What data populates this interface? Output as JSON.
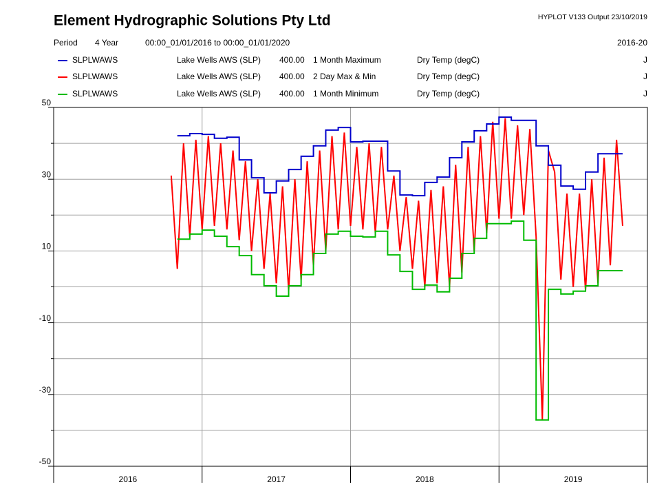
{
  "header": {
    "title": "Element Hydrographic Solutions Pty Ltd",
    "program": "HYPLOT V133  Output 23/10/2019",
    "period_label": "Period",
    "period": "4 Year",
    "range": "00:00_01/01/2016 to 00:00_01/01/2020",
    "years": "2016-20"
  },
  "chart_data": {
    "type": "line",
    "categories": [
      "2016",
      "2017",
      "2018",
      "2019"
    ],
    "xlim": [
      2016,
      2020
    ],
    "xticks": [
      2016,
      2017,
      2018,
      2019,
      2020
    ],
    "ylim": [
      -50,
      50
    ],
    "yticks": [
      -50,
      -30,
      -10,
      10,
      30,
      50
    ],
    "minor_yticks": [
      -40,
      -20,
      0,
      20,
      40
    ],
    "grid": true,
    "series": [
      {
        "name": "SLPLWAWS",
        "site": "Lake Wells AWS (SLP)",
        "code": "400.00",
        "description": "1 Month Maximum",
        "variable": "Dry Temp (degC)",
        "quality": "J",
        "color": "#0000cc",
        "step": true,
        "x": [
          2016.833,
          2016.917,
          2017.0,
          2017.083,
          2017.167,
          2017.25,
          2017.333,
          2017.417,
          2017.5,
          2017.583,
          2017.667,
          2017.75,
          2017.833,
          2017.917,
          2018.0,
          2018.083,
          2018.167,
          2018.25,
          2018.333,
          2018.417,
          2018.5,
          2018.583,
          2018.667,
          2018.75,
          2018.833,
          2018.917,
          2019.0,
          2019.083,
          2019.167,
          2019.25,
          2019.333,
          2019.417,
          2019.5,
          2019.583,
          2019.667,
          2019.75
        ],
        "values": [
          42.1,
          42.7,
          42.5,
          41.4,
          41.7,
          35.4,
          30.4,
          26.2,
          29.5,
          32.7,
          36.4,
          39.3,
          43.7,
          44.4,
          40.4,
          40.6,
          40.6,
          32.3,
          25.6,
          25.4,
          29.1,
          30.6,
          36.0,
          40.4,
          43.5,
          45.4,
          47.3,
          46.4,
          46.4,
          39.3,
          33.9,
          28.1,
          27.2,
          32.0,
          37.1,
          37.1
        ]
      },
      {
        "name": "SLPLWAWS",
        "site": "Lake Wells AWS (SLP)",
        "code": "400.00",
        "description": "2 Day Max & Min",
        "variable": "Dry Temp (degC)",
        "quality": "J",
        "color": "#ff0000",
        "step": false,
        "x": [
          2016.792,
          2016.833,
          2016.875,
          2016.917,
          2016.958,
          2017.0,
          2017.042,
          2017.083,
          2017.125,
          2017.167,
          2017.208,
          2017.25,
          2017.292,
          2017.333,
          2017.375,
          2017.417,
          2017.458,
          2017.5,
          2017.542,
          2017.583,
          2017.625,
          2017.667,
          2017.708,
          2017.75,
          2017.792,
          2017.833,
          2017.875,
          2017.917,
          2017.958,
          2018.0,
          2018.042,
          2018.083,
          2018.125,
          2018.167,
          2018.208,
          2018.25,
          2018.292,
          2018.333,
          2018.375,
          2018.417,
          2018.458,
          2018.5,
          2018.542,
          2018.583,
          2018.625,
          2018.667,
          2018.708,
          2018.75,
          2018.792,
          2018.833,
          2018.875,
          2018.917,
          2018.958,
          2019.0,
          2019.042,
          2019.083,
          2019.125,
          2019.167,
          2019.208,
          2019.25,
          2019.292,
          2019.333,
          2019.375,
          2019.417,
          2019.458,
          2019.5,
          2019.542,
          2019.583,
          2019.625,
          2019.667,
          2019.708,
          2019.75,
          2019.792,
          2019.833
        ],
        "values": [
          31,
          5,
          40,
          14,
          41,
          16,
          42,
          17,
          40,
          16,
          38,
          13,
          35,
          10,
          30,
          5,
          26,
          1,
          28,
          -1,
          30,
          2,
          35,
          6,
          38,
          10,
          42,
          16,
          43,
          17,
          39,
          16,
          40,
          15,
          39,
          16,
          31,
          10,
          25,
          5,
          24,
          0,
          27,
          1,
          28,
          0,
          34,
          4,
          39,
          10,
          42,
          15,
          46,
          19,
          47,
          19,
          45,
          20,
          44,
          14,
          -37,
          38,
          32,
          2,
          26,
          0,
          26,
          -1,
          30,
          1,
          36,
          6,
          41,
          17
        ]
      },
      {
        "name": "SLPLWAWS",
        "site": "Lake Wells AWS (SLP)",
        "code": "400.00",
        "description": "1 Month Minimum",
        "variable": "Dry Temp (degC)",
        "quality": "J",
        "color": "#00bb00",
        "step": true,
        "x": [
          2016.833,
          2016.917,
          2017.0,
          2017.083,
          2017.167,
          2017.25,
          2017.333,
          2017.417,
          2017.5,
          2017.583,
          2017.667,
          2017.75,
          2017.833,
          2017.917,
          2018.0,
          2018.083,
          2018.167,
          2018.25,
          2018.333,
          2018.417,
          2018.5,
          2018.583,
          2018.667,
          2018.75,
          2018.833,
          2018.917,
          2019.0,
          2019.083,
          2019.167,
          2019.25,
          2019.333,
          2019.417,
          2019.5,
          2019.583,
          2019.667,
          2019.75
        ],
        "values": [
          13.3,
          14.7,
          15.8,
          14.1,
          11.2,
          8.7,
          3.4,
          0.3,
          -2.6,
          0.3,
          3.4,
          9.3,
          14.7,
          15.5,
          14.1,
          13.9,
          15.5,
          8.9,
          4.3,
          -0.7,
          0.5,
          -1.4,
          2.4,
          9.3,
          13.5,
          17.6,
          17.6,
          18.3,
          13.0,
          -37.1,
          -0.7,
          -2.0,
          -1.2,
          0.3,
          4.5,
          4.5
        ]
      }
    ]
  }
}
